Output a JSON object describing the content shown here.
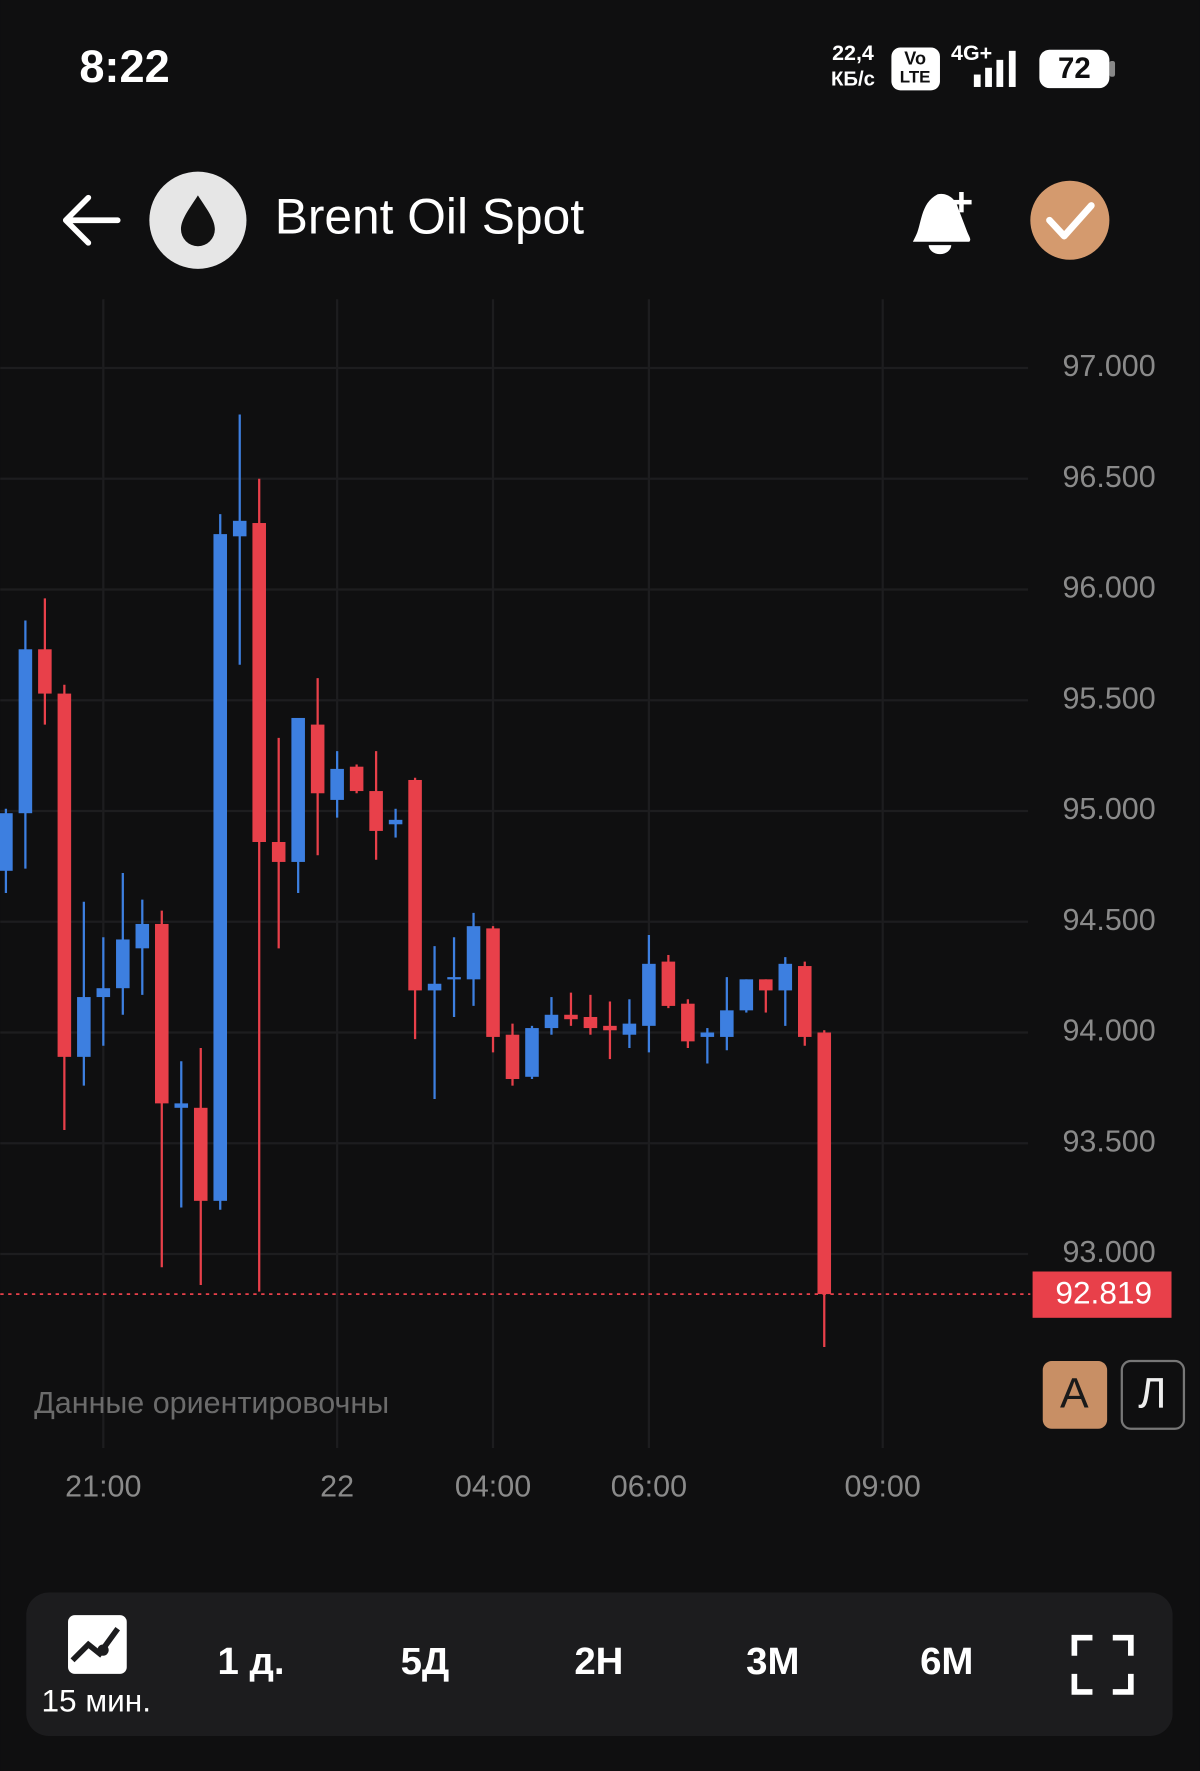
{
  "status_bar": {
    "time": "8:22",
    "speed": "22,4",
    "speed_unit": "КБ/с",
    "volte": [
      "Vo",
      "LTE"
    ],
    "network": "4G+",
    "battery": "72"
  },
  "header": {
    "title": "Brent Oil Spot"
  },
  "chart_data": {
    "type": "candlestick",
    "up_color": "#3d7fe0",
    "down_color": "#e8404a",
    "grid": true,
    "open": [
      94.73,
      94.99,
      95.73,
      95.53,
      93.89,
      94.16,
      94.2,
      94.38,
      94.49,
      93.66,
      93.66,
      93.24,
      96.24,
      96.3,
      94.86,
      94.77,
      95.39,
      95.05,
      95.2,
      95.09,
      94.94,
      95.14,
      94.19,
      94.24,
      94.24,
      94.47,
      93.99,
      93.8,
      94.02,
      94.08,
      94.07,
      94.03,
      93.99,
      94.03,
      94.32,
      94.13,
      93.98,
      93.98,
      94.1,
      94.24,
      94.19,
      94.3,
      94.0
    ],
    "high": [
      95.01,
      95.86,
      95.96,
      95.57,
      94.59,
      94.43,
      94.72,
      94.6,
      94.55,
      93.87,
      93.93,
      96.34,
      96.79,
      96.5,
      95.33,
      95.42,
      95.6,
      95.27,
      95.21,
      95.27,
      95.01,
      95.15,
      94.39,
      94.43,
      94.54,
      94.48,
      94.04,
      94.03,
      94.16,
      94.18,
      94.17,
      94.14,
      94.15,
      94.44,
      94.35,
      94.15,
      94.02,
      94.25,
      94.24,
      94.24,
      94.34,
      94.32,
      94.01
    ],
    "low": [
      94.63,
      94.74,
      95.39,
      93.56,
      93.76,
      93.94,
      94.08,
      94.17,
      92.94,
      93.21,
      92.86,
      93.2,
      95.66,
      92.83,
      94.38,
      94.63,
      94.8,
      94.97,
      95.08,
      94.78,
      94.88,
      93.97,
      93.7,
      94.07,
      94.12,
      93.91,
      93.76,
      93.79,
      93.99,
      94.03,
      93.99,
      93.88,
      93.93,
      93.91,
      94.11,
      93.93,
      93.86,
      93.92,
      94.09,
      94.09,
      94.03,
      93.94,
      92.58
    ],
    "close": [
      94.99,
      95.73,
      95.53,
      93.89,
      94.16,
      94.2,
      94.42,
      94.49,
      93.68,
      93.68,
      93.24,
      96.25,
      96.31,
      94.86,
      94.77,
      95.42,
      95.08,
      95.19,
      95.09,
      94.91,
      94.96,
      94.19,
      94.22,
      94.25,
      94.48,
      93.98,
      93.79,
      94.02,
      94.08,
      94.06,
      94.02,
      94.01,
      94.04,
      94.31,
      94.12,
      93.96,
      94.0,
      94.1,
      94.24,
      94.19,
      94.31,
      93.98,
      92.819
    ],
    "xlim": [
      -0.29,
      52.46
    ],
    "xticks": [
      {
        "value": 5,
        "label": "21:00"
      },
      {
        "value": 17,
        "label": "22"
      },
      {
        "value": 25,
        "label": "04:00"
      },
      {
        "value": 33,
        "label": "06:00"
      },
      {
        "value": 45,
        "label": "09:00"
      }
    ],
    "ylim": [
      92.16,
      97.31
    ],
    "yticks": [
      {
        "value": 93,
        "label": "93.000"
      },
      {
        "value": 93.5,
        "label": "93.500"
      },
      {
        "value": 94,
        "label": "94.000"
      },
      {
        "value": 94.5,
        "label": "94.500"
      },
      {
        "value": 95,
        "label": "95.000"
      },
      {
        "value": 95.5,
        "label": "95.500"
      },
      {
        "value": 96,
        "label": "96.000"
      },
      {
        "value": 96.5,
        "label": "96.500"
      },
      {
        "value": 97,
        "label": "97.000"
      }
    ],
    "last_price": {
      "value": 92.819,
      "label": "92.819"
    }
  },
  "note": "Данные ориентировочны",
  "scale_buttons": [
    "А",
    "Л"
  ],
  "interval": "15 мин.",
  "periods": [
    "1 д.",
    "5Д",
    "2Н",
    "3М",
    "6М"
  ]
}
